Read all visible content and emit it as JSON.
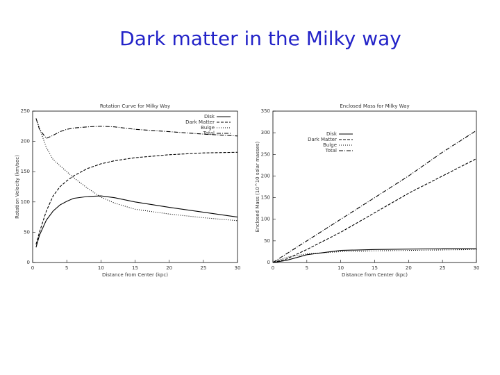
{
  "title": "Dark matter in the Milky way",
  "chart_data": [
    {
      "type": "line",
      "title": "Rotation Curve for Milky Way",
      "x_label": "Distance from Center (kpc)",
      "y_label": "Rotation Velocity (km/sec)",
      "x": [
        0.5,
        1,
        2,
        3,
        4,
        5,
        6,
        8,
        10,
        12,
        15,
        20,
        25,
        30
      ],
      "xlim": [
        0,
        30
      ],
      "xticks": [
        0,
        5,
        10,
        15,
        20,
        25,
        30
      ],
      "ylim": [
        0,
        250
      ],
      "yticks": [
        0,
        50,
        100,
        150,
        200,
        250
      ],
      "series": [
        {
          "name": "Disk",
          "color": "#000000",
          "dash": "none",
          "values": [
            25,
            45,
            70,
            85,
            95,
            101,
            106,
            109,
            110,
            107,
            100,
            91,
            83,
            75
          ]
        },
        {
          "name": "Dark Matter",
          "color": "#000000",
          "dash": "4,2",
          "values": [
            30,
            50,
            85,
            110,
            125,
            135,
            143,
            155,
            163,
            168,
            173,
            178,
            181,
            182
          ]
        },
        {
          "name": "Bulge",
          "color": "#000000",
          "dash": "1,2",
          "values": [
            238,
            222,
            190,
            170,
            160,
            150,
            140,
            123,
            108,
            98,
            88,
            80,
            74,
            69
          ]
        },
        {
          "name": "Total",
          "color": "#000000",
          "dash": "6,2,1,2",
          "values": [
            238,
            220,
            205,
            210,
            216,
            220,
            222,
            224,
            225,
            224,
            220,
            216,
            212,
            209
          ]
        }
      ]
    },
    {
      "type": "line",
      "title": "Enclosed Mass for Milky Way",
      "x_label": "Distance from Center (kpc)",
      "y_label": "Enclosed Mass (10^10 solar masses)",
      "x": [
        0,
        2,
        5,
        10,
        15,
        20,
        25,
        30
      ],
      "xlim": [
        0,
        30
      ],
      "xticks": [
        0,
        5,
        10,
        15,
        20,
        25,
        30
      ],
      "ylim": [
        0,
        350
      ],
      "yticks": [
        0,
        50,
        100,
        150,
        200,
        250,
        300,
        350
      ],
      "series": [
        {
          "name": "Disk",
          "color": "#000000",
          "dash": "none",
          "values": [
            0,
            5,
            18,
            28,
            30,
            31,
            32,
            32
          ]
        },
        {
          "name": "Dark Matter",
          "color": "#000000",
          "dash": "4,2",
          "values": [
            0,
            8,
            30,
            70,
            115,
            160,
            200,
            240
          ]
        },
        {
          "name": "Bulge",
          "color": "#000000",
          "dash": "1,2",
          "values": [
            0,
            12,
            20,
            25,
            27,
            28,
            29,
            30
          ]
        },
        {
          "name": "Total",
          "color": "#000000",
          "dash": "6,2,1,2",
          "values": [
            0,
            20,
            50,
            100,
            150,
            200,
            255,
            305
          ]
        }
      ]
    }
  ]
}
